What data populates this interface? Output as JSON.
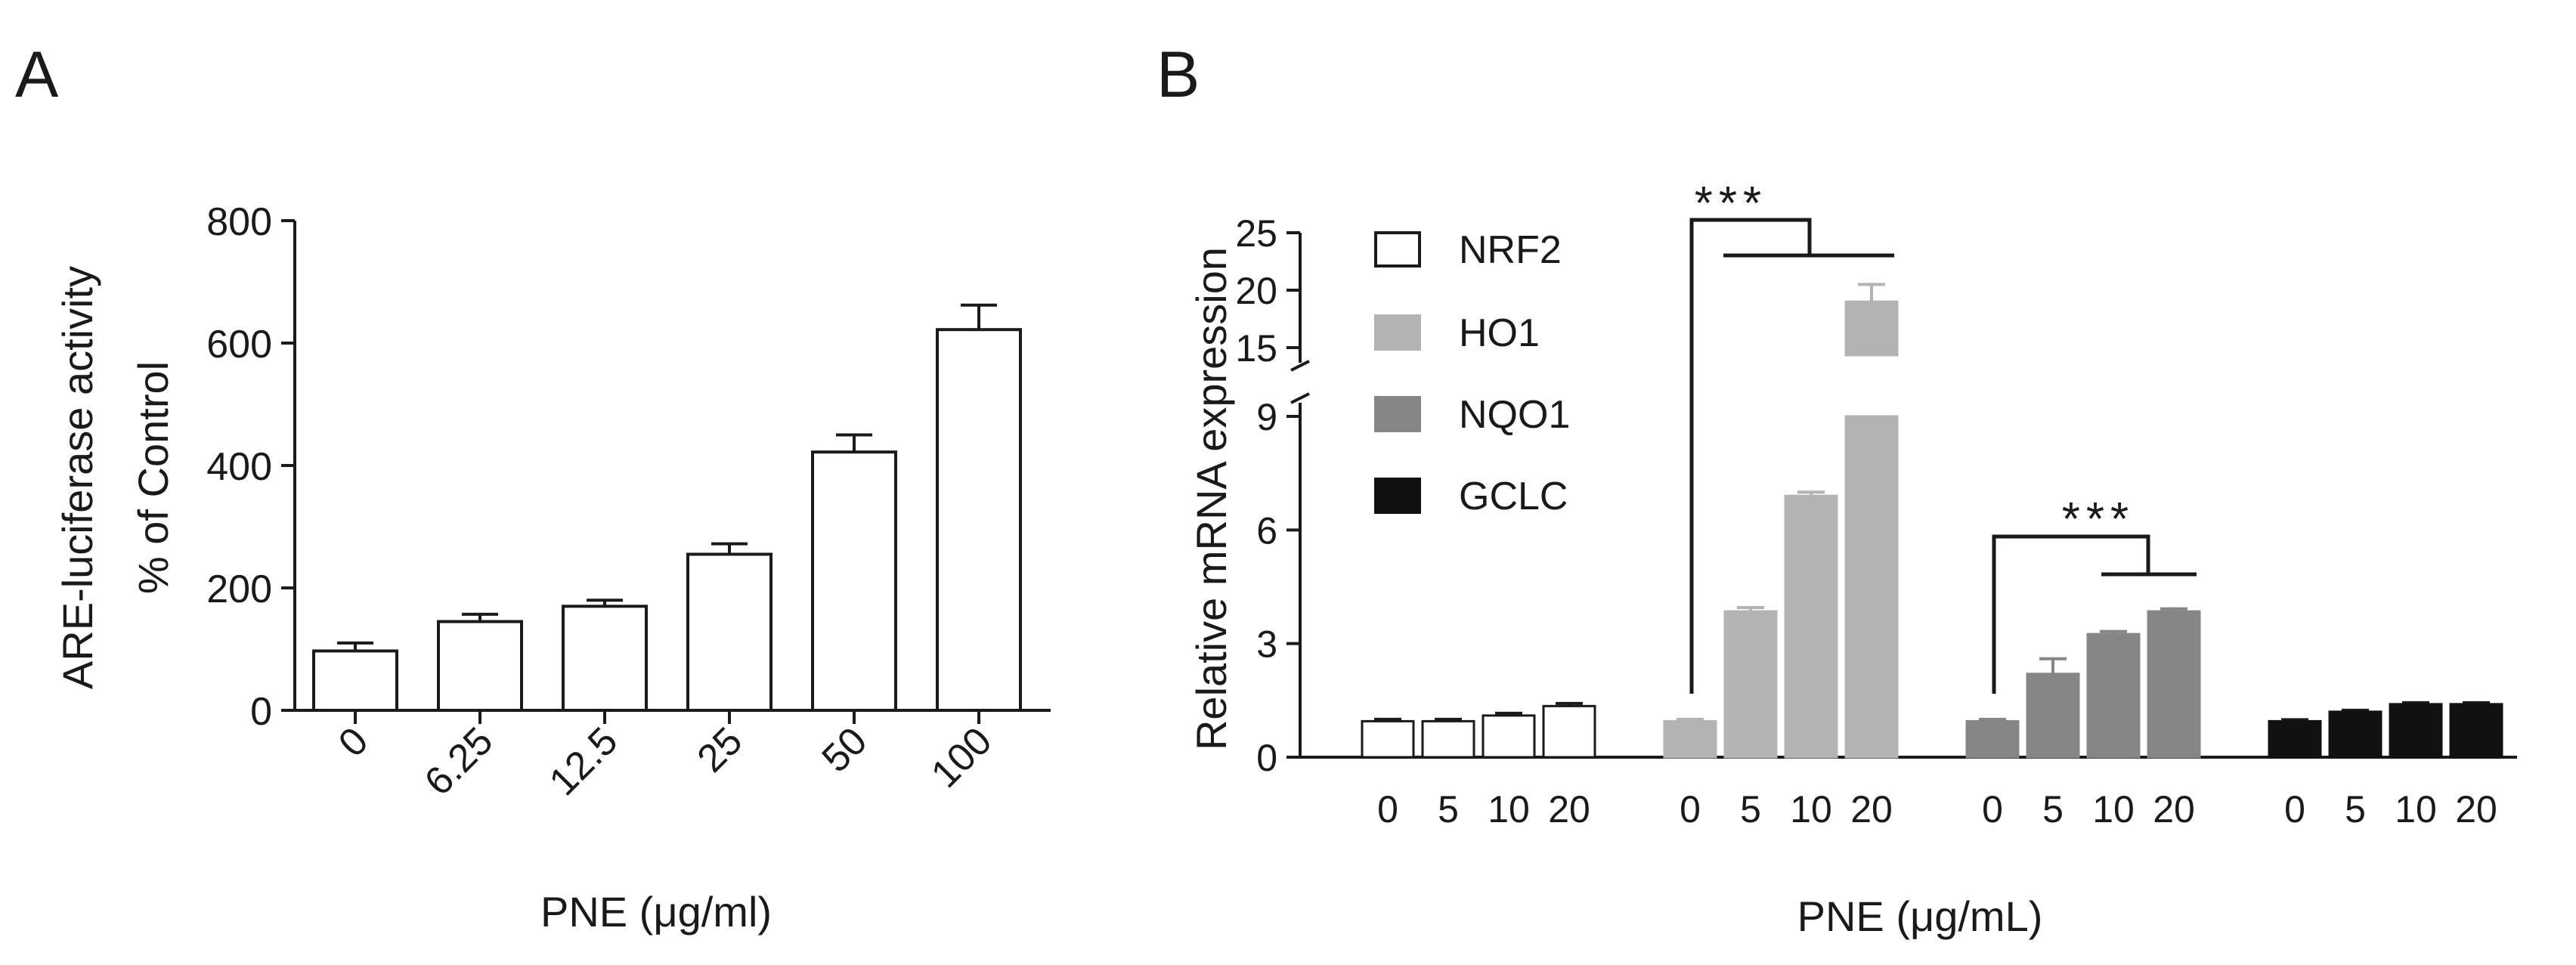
{
  "panels": {
    "a_label": "A",
    "b_label": "B"
  },
  "chart_data": [
    {
      "type": "bar",
      "panel": "A",
      "title": "",
      "ylabel_line1": "ARE-luciferase activity",
      "ylabel_line2": "% of Control",
      "xlabel": "PNE (μg/ml)",
      "categories": [
        "0",
        "6.25",
        "12.5",
        "25",
        "50",
        "100"
      ],
      "values": [
        97,
        145,
        170,
        255,
        422,
        622
      ],
      "errors": [
        13,
        12,
        10,
        17,
        28,
        40
      ],
      "ylim": [
        0,
        800
      ],
      "yticks": [
        "0",
        "200",
        "400",
        "600",
        "800"
      ],
      "bar_color": "#ffffff",
      "edge_color": "#1a1a1a",
      "grid": false
    },
    {
      "type": "bar",
      "panel": "B",
      "title": "",
      "ylabel": "Relative mRNA expression",
      "xlabel": "PNE (μg/mL)",
      "axis_break": "between 9 and 15",
      "ylim": [
        0,
        25
      ],
      "yticks_lower": [
        "0",
        "3",
        "6",
        "9"
      ],
      "yticks_upper": [
        "15",
        "20",
        "25"
      ],
      "grid": false,
      "legend_position": "top-left",
      "categories": [
        "0",
        "5",
        "10",
        "20"
      ],
      "series": [
        {
          "name": "NRF2",
          "color": "#ffffff",
          "edge": "#1a1a1a",
          "values": [
            0.95,
            0.95,
            1.1,
            1.35
          ],
          "errors": [
            0.05,
            0.05,
            0.06,
            0.07
          ]
        },
        {
          "name": "HO1",
          "color": "#b3b3b3",
          "edge": "#b3b3b3",
          "values": [
            0.95,
            3.85,
            6.9,
            19.0
          ],
          "errors": [
            0.05,
            0.1,
            0.1,
            1.5
          ]
        },
        {
          "name": "NQO1",
          "color": "#868686",
          "edge": "#868686",
          "values": [
            0.95,
            2.2,
            3.25,
            3.85
          ],
          "errors": [
            0.05,
            0.4,
            0.07,
            0.07
          ]
        },
        {
          "name": "GCLC",
          "color": "#111111",
          "edge": "#111111",
          "values": [
            0.95,
            1.2,
            1.4,
            1.4
          ],
          "errors": [
            0.04,
            0.04,
            0.04,
            0.04
          ]
        }
      ],
      "annotations": [
        "***",
        "***"
      ]
    }
  ]
}
